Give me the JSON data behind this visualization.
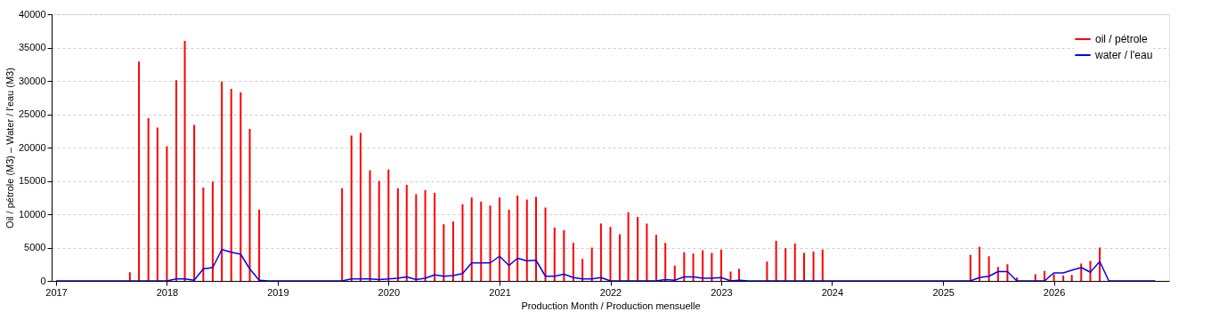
{
  "chart_data": {
    "type": "bar",
    "xlabel": "Production Month / Production mensuelle",
    "ylabel": "Oil / pétrole (M3)  –  Water / l'eau (M3)",
    "x": [
      "2017-01",
      "2017-02",
      "2017-03",
      "2017-04",
      "2017-05",
      "2017-06",
      "2017-07",
      "2017-08",
      "2017-09",
      "2017-10",
      "2017-11",
      "2017-12",
      "2018-01",
      "2018-02",
      "2018-03",
      "2018-04",
      "2018-05",
      "2018-06",
      "2018-07",
      "2018-08",
      "2018-09",
      "2018-10",
      "2018-11",
      "2018-12",
      "2019-01",
      "2019-02",
      "2019-03",
      "2019-04",
      "2019-05",
      "2019-06",
      "2019-07",
      "2019-08",
      "2019-09",
      "2019-10",
      "2019-11",
      "2019-12",
      "2020-01",
      "2020-02",
      "2020-03",
      "2020-04",
      "2020-05",
      "2020-06",
      "2020-07",
      "2020-08",
      "2020-09",
      "2020-10",
      "2020-11",
      "2020-12",
      "2021-01",
      "2021-02",
      "2021-03",
      "2021-04",
      "2021-05",
      "2021-06",
      "2021-07",
      "2021-08",
      "2021-09",
      "2021-10",
      "2021-11",
      "2021-12",
      "2022-01",
      "2022-02",
      "2022-03",
      "2022-04",
      "2022-05",
      "2022-06",
      "2022-07",
      "2022-08",
      "2022-09",
      "2022-10",
      "2022-11",
      "2022-12",
      "2023-01",
      "2023-02",
      "2023-03",
      "2023-04",
      "2023-05",
      "2023-06",
      "2023-07",
      "2023-08",
      "2023-09",
      "2023-10",
      "2023-11",
      "2023-12",
      "2024-01",
      "2024-02",
      "2024-03",
      "2024-04",
      "2024-05",
      "2024-06",
      "2024-07",
      "2024-08",
      "2024-09",
      "2024-10",
      "2024-11",
      "2024-12",
      "2025-01",
      "2025-02",
      "2025-03",
      "2025-04",
      "2025-05",
      "2025-06",
      "2025-07",
      "2025-08",
      "2025-09",
      "2025-10",
      "2025-11",
      "2025-12",
      "2026-01",
      "2026-02",
      "2026-03",
      "2026-04",
      "2026-05",
      "2026-06",
      "2026-07",
      "2026-08",
      "2026-09",
      "2026-10",
      "2026-11",
      "2026-12"
    ],
    "series": [
      {
        "name": "oil / pétrole",
        "color": "#ff0000",
        "values": [
          0,
          0,
          0,
          0,
          0,
          0,
          0,
          0,
          1300,
          32900,
          24400,
          23000,
          20200,
          30100,
          36000,
          23400,
          14000,
          14900,
          29900,
          28800,
          28300,
          22800,
          10700,
          0,
          0,
          0,
          0,
          0,
          0,
          0,
          0,
          13900,
          21800,
          22200,
          16600,
          15000,
          16700,
          13900,
          14400,
          13000,
          13600,
          13200,
          8500,
          8900,
          11500,
          12500,
          11900,
          11300,
          12500,
          10700,
          12800,
          12200,
          12600,
          11000,
          8000,
          7600,
          5700,
          3300,
          5000,
          8600,
          8100,
          7000,
          10300,
          9600,
          8600,
          6900,
          5700,
          2300,
          4300,
          4100,
          4600,
          4200,
          4700,
          1400,
          1800,
          0,
          0,
          2900,
          6000,
          4900,
          5600,
          4200,
          4400,
          4700,
          0,
          0,
          0,
          0,
          0,
          0,
          0,
          0,
          0,
          0,
          0,
          0,
          0,
          0,
          0,
          3900,
          5100,
          3700,
          2100,
          2500,
          500,
          0,
          1000,
          1500,
          1000,
          800,
          900,
          2600,
          3000,
          5000,
          0,
          0,
          0,
          0,
          0,
          0
        ]
      },
      {
        "name": "water / l'eau",
        "type": "line",
        "color": "#0000ff",
        "values": [
          0,
          0,
          0,
          0,
          0,
          0,
          0,
          0,
          0,
          0,
          0,
          0,
          0,
          300,
          300,
          100,
          1800,
          2000,
          4700,
          4300,
          4000,
          1800,
          100,
          0,
          0,
          0,
          0,
          0,
          0,
          0,
          0,
          0,
          300,
          300,
          300,
          200,
          300,
          400,
          600,
          200,
          400,
          900,
          700,
          800,
          1100,
          2700,
          2700,
          2700,
          3700,
          2300,
          3400,
          3000,
          3100,
          700,
          700,
          1000,
          500,
          300,
          300,
          500,
          0,
          0,
          0,
          0,
          0,
          0,
          200,
          100,
          600,
          600,
          400,
          400,
          500,
          0,
          100,
          0,
          0,
          0,
          0,
          0,
          0,
          0,
          0,
          0,
          0,
          0,
          0,
          0,
          0,
          0,
          0,
          0,
          0,
          0,
          0,
          0,
          0,
          0,
          0,
          0,
          500,
          700,
          1400,
          1400,
          0,
          0,
          0,
          0,
          1200,
          1200,
          1600,
          2000,
          1300,
          2900,
          0,
          0,
          0,
          0,
          0,
          0
        ]
      }
    ],
    "xlim": [
      "2017-01-01",
      "2027-01-01"
    ],
    "xticks": [
      "2017",
      "2018",
      "2019",
      "2020",
      "2021",
      "2022",
      "2023",
      "2024",
      "2025",
      "2026"
    ],
    "ylim": [
      0,
      40000
    ],
    "yticks": [
      0,
      5000,
      10000,
      15000,
      20000,
      25000,
      30000,
      35000,
      40000
    ],
    "grid": "y",
    "legend": "top right"
  }
}
